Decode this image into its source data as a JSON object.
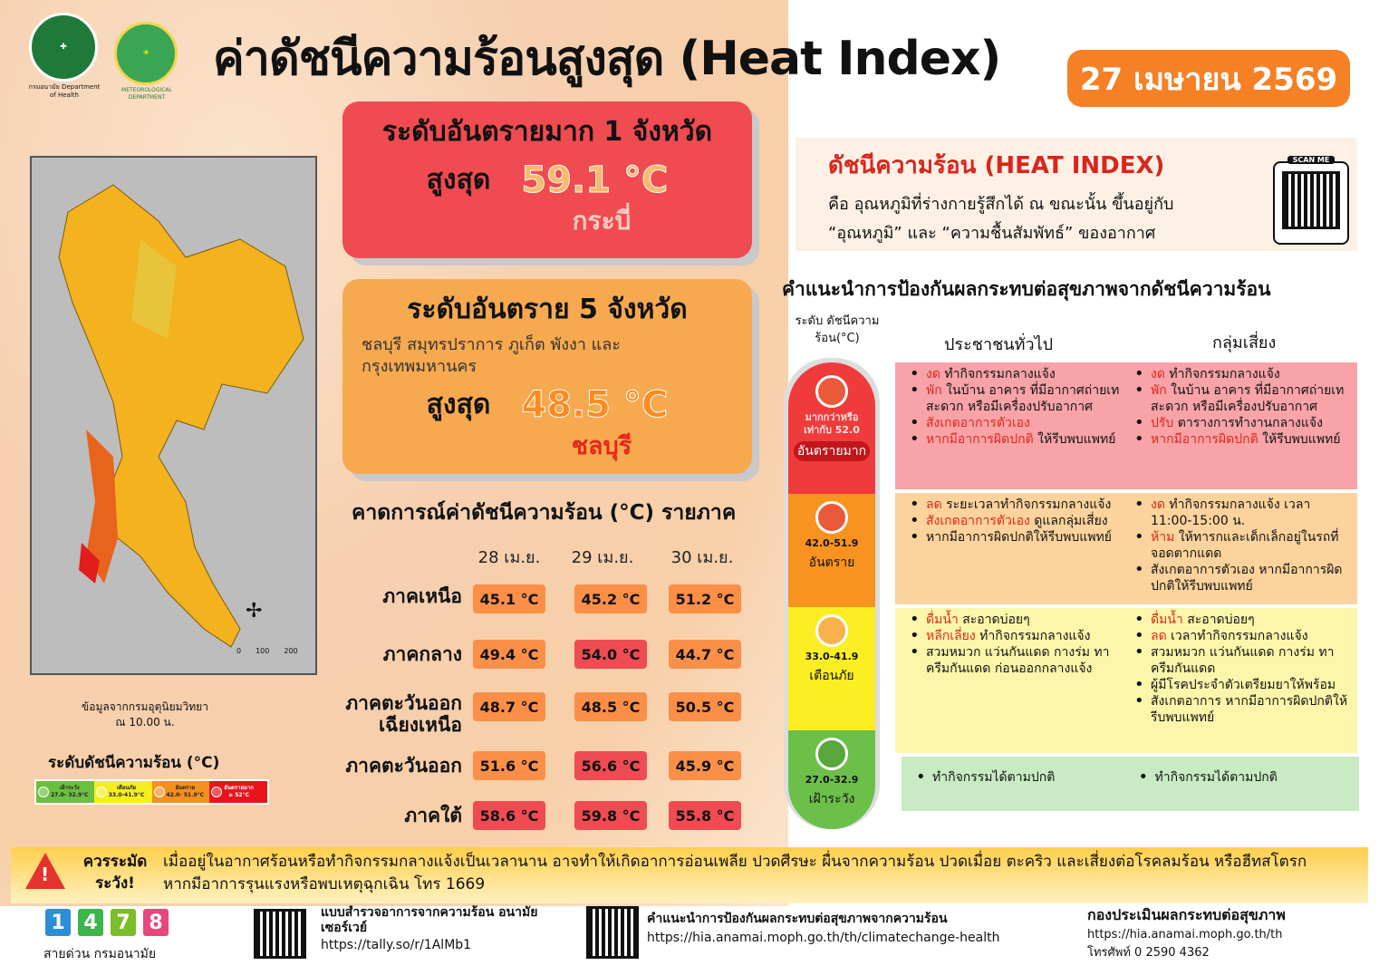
{
  "header": {
    "title": "ค่าดัชนีความร้อนสูงสุด (Heat Index)",
    "date": "27 เมษายน 2569",
    "logo1_text": "กรมอนามัย Department of Health",
    "logo2_text": "METEOROLOGICAL DEPARTMENT"
  },
  "extreme": {
    "title": "ระดับอันตรายมาก 1 จังหวัด",
    "max_label": "สูงสุด",
    "value": "59.1 °C",
    "province": "กระบี่"
  },
  "danger": {
    "title": "ระดับอันตราย 5 จังหวัด",
    "provinces": "ชลบุรี สมุทรปราการ ภูเก็ต พังงา และ กรุงเทพมหานคร",
    "max_label": "สูงสุด",
    "value": "48.5 °C",
    "province": "ชลบุรี"
  },
  "forecast": {
    "title": "คาดการณ์ค่าดัชนีความร้อน (°C) รายภาค",
    "dates": [
      "28 เม.ย.",
      "29 เม.ย.",
      "30 เม.ย."
    ],
    "rows": [
      {
        "region": "ภาคเหนือ",
        "values": [
          "45.1 °C",
          "45.2 °C",
          "51.2 °C"
        ],
        "levels": [
          "danger",
          "danger",
          "danger"
        ]
      },
      {
        "region": "ภาคกลาง",
        "values": [
          "49.4 °C",
          "54.0 °C",
          "44.7 °C"
        ],
        "levels": [
          "danger",
          "extreme",
          "danger"
        ]
      },
      {
        "region": "ภาคตะวันออก เฉียงเหนือ",
        "values": [
          "48.7 °C",
          "48.5 °C",
          "50.5 °C"
        ],
        "levels": [
          "danger",
          "danger",
          "danger"
        ]
      },
      {
        "region": "ภาคตะวันออก",
        "values": [
          "51.6 °C",
          "56.6 °C",
          "45.9 °C"
        ],
        "levels": [
          "danger",
          "extreme",
          "danger"
        ]
      },
      {
        "region": "ภาคใต้",
        "values": [
          "58.6 °C",
          "59.8 °C",
          "55.8 °C"
        ],
        "levels": [
          "extreme",
          "extreme",
          "extreme"
        ]
      }
    ]
  },
  "map": {
    "source": "ข้อมูลจากกรมอุตุนิยมวิทยา",
    "time": "ณ 10.00 น.",
    "scale": [
      "0",
      "100",
      "200"
    ],
    "compass": [
      "N",
      "E",
      "S",
      "W"
    ]
  },
  "legend": {
    "title": "ระดับดัชนีความร้อน (°C)",
    "items": [
      {
        "label": "เฝ้าระวัง",
        "range": "27.0- 32.9°C",
        "color": "#6cbf3f"
      },
      {
        "label": "เตือนภัย",
        "range": "33.0-41.9°C",
        "color": "#f6ef1f"
      },
      {
        "label": "อันตราย",
        "range": "42.0- 51.9°C",
        "color": "#f4901e"
      },
      {
        "label": "อันตรายมาก",
        "range": "≥ 52°C",
        "color": "#e8141b"
      }
    ]
  },
  "info": {
    "title": "ดัชนีความร้อน (HEAT INDEX)",
    "line1": "คือ อุณหภูมิที่ร่างกายรู้สึกได้ ณ ขณะนั้น ขึ้นอยู่กับ",
    "line2": "“อุณหภูมิ” และ “ความชื้นสัมพัทธ์” ของอากาศ",
    "scan": "SCAN ME"
  },
  "advice": {
    "title": "คำแนะนำการป้องกันผลกระทบต่อสุขภาพจากดัชนีความร้อน",
    "col_level": "ระดับ ดัชนีความร้อน(°C)",
    "col_general": "ประชาชนทั่วไป",
    "col_risk": "กลุ่มเสี่ยง",
    "levels": [
      {
        "range": "มากกว่าหรือ เท่ากับ 52.0",
        "name": "อันตรายมาก",
        "color": "#ef3b3b",
        "bg": "#f7a3a8",
        "general": [
          [
            "งด",
            "ทำกิจกรรมกลางแจ้ง"
          ],
          [
            "พัก",
            "ในบ้าน อาคาร ที่มีอากาศถ่ายเทสะดวก หรือมีเครื่องปรับอากาศ"
          ],
          [
            "สังเกตอาการตัวเอง",
            ""
          ],
          [
            "หากมีอาการผิดปกติ",
            "ให้รีบพบแพทย์"
          ]
        ],
        "risk": [
          [
            "งด",
            "ทำกิจกรรมกลางแจ้ง"
          ],
          [
            "พัก",
            "ในบ้าน อาคาร ที่มีอากาศถ่ายเทสะดวก หรือมีเครื่องปรับอากาศ"
          ],
          [
            "ปรับ",
            "ตารางการทำงานกลางแจ้ง"
          ],
          [
            "หากมีอาการผิดปกติ",
            "ให้รีบพบแพทย์"
          ]
        ]
      },
      {
        "range": "42.0-51.9",
        "name": "อันตราย",
        "color": "#f7931e",
        "bg": "#fcd39c",
        "general": [
          [
            "ลด",
            "ระยะเวลาทำกิจกรรมกลางแจ้ง"
          ],
          [
            "สังเกตอาการตัวเอง",
            "ดูแลกลุ่มเสี่ยง"
          ],
          [
            "",
            "หากมีอาการผิดปกติให้รีบพบแพทย์"
          ]
        ],
        "risk": [
          [
            "งด",
            "ทำกิจกรรมกลางแจ้ง เวลา 11:00-15:00 น."
          ],
          [
            "ห้าม",
            "ให้ทารกและเด็กเล็กอยู่ในรถที่จอดตากแดด"
          ],
          [
            "",
            "สังเกตอาการตัวเอง หากมีอาการผิดปกติให้รีบพบแพทย์"
          ]
        ]
      },
      {
        "range": "33.0-41.9",
        "name": "เตือนภัย",
        "color": "#fbee23",
        "bg": "#fdf6aa",
        "general": [
          [
            "ดื่มน้ำ",
            "สะอาดบ่อยๆ"
          ],
          [
            "หลีกเลี่ยง",
            "ทำกิจกรรมกลางแจ้ง"
          ],
          [
            "",
            "สวมหมวก แว่นกันแดด กางร่ม ทาครีมกันแดด ก่อนออกกลางแจ้ง"
          ]
        ],
        "risk": [
          [
            "ดื่มน้ำ",
            "สะอาดบ่อยๆ"
          ],
          [
            "ลด",
            "เวลาทำกิจกรรมกลางแจ้ง"
          ],
          [
            "",
            "สวมหมวก แว่นกันแดด กางร่ม ทาครีมกันแดด"
          ],
          [
            "",
            "ผู้มีโรคประจำตัวเตรียมยาให้พร้อม"
          ],
          [
            "",
            "สังเกตอาการ หากมีอาการผิดปกติให้รีบพบแพทย์"
          ]
        ]
      },
      {
        "range": "27.0-32.9",
        "name": "เฝ้าระวัง",
        "color": "#6cc04a",
        "bg": "#c9ebc3",
        "general": [
          [
            "",
            "ทำกิจกรรมได้ตามปกติ"
          ]
        ],
        "risk": [
          [
            "",
            "ทำกิจกรรมได้ตามปกติ"
          ]
        ]
      }
    ]
  },
  "warning": {
    "title": "ควรระมัด ระวัง!",
    "text1": "เมื่ออยู่ในอากาศร้อนหรือทำกิจกรรมกลางแจ้งเป็นเวลานาน อาจทำให้เกิดอาการอ่อนเพลีย ปวดศีรษะ ผื่นจากความร้อน ปวดเมื่อย ตะคริว และเสี่ยงต่อโรคลมร้อน หรือฮีทสโตรก",
    "text2": "หากมีอาการรุนแรงหรือพบเหตุฉุกเฉิน โทร 1669"
  },
  "footer": {
    "hotline_digits": [
      "1",
      "4",
      "7",
      "8"
    ],
    "hotline_colors": [
      "#2a8fd6",
      "#3cb54a",
      "#7cbd2a",
      "#e8467c"
    ],
    "hotline_label": "สายด่วน กรมอนามัย",
    "survey_title": "แบบสำรวจอาการจากความร้อน อนามัยเซอร์เวย์",
    "survey_url": "https://tally.so/r/1AlMb1",
    "guide_title": "คำแนะนำการป้องกันผลกระทบต่อสุขภาพจากความร้อน",
    "guide_url": "https://hia.anamai.moph.go.th/th/climatechange-health",
    "org_title": "กองประเมินผลกระทบต่อสุขภาพ",
    "org_url": "https://hia.anamai.moph.go.th/th",
    "org_phone": "โทรศัพท์ 0 2590 4362"
  }
}
